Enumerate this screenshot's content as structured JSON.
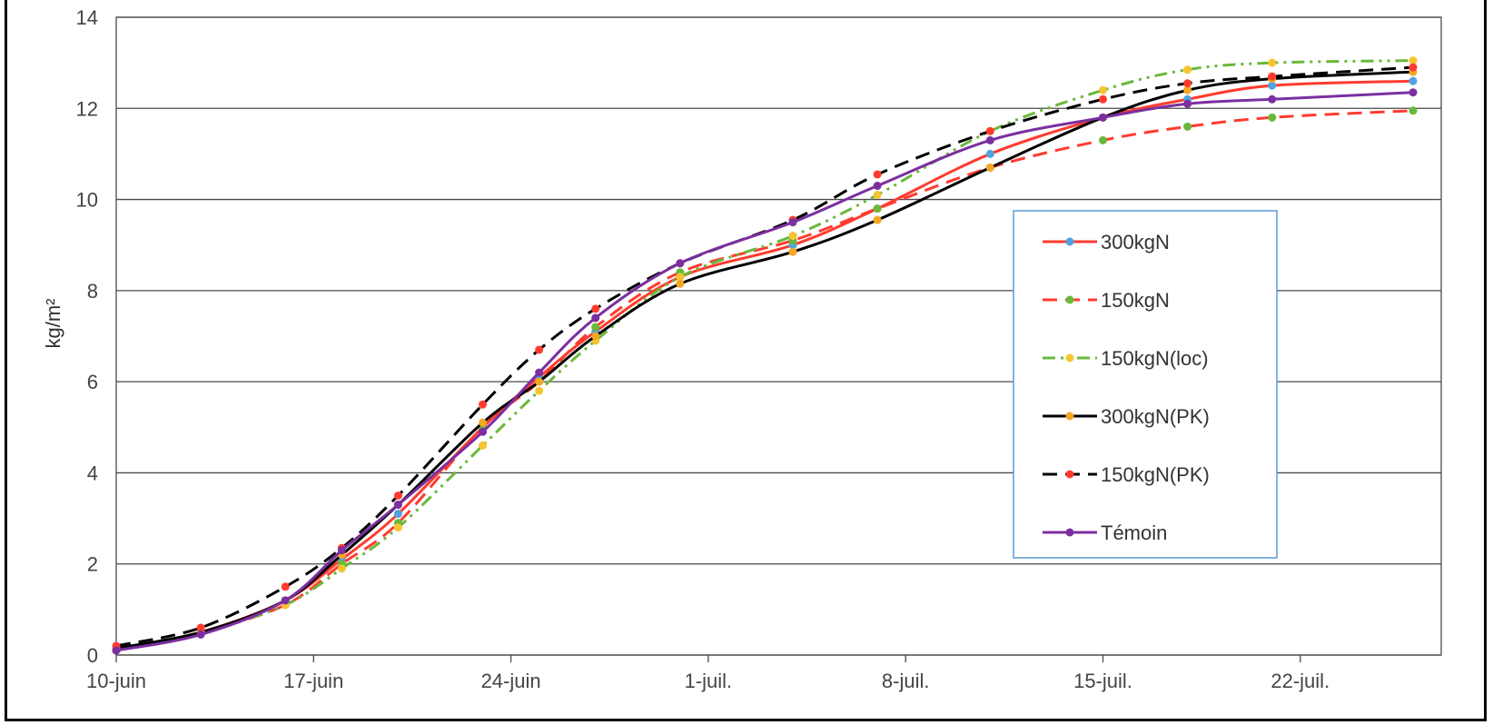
{
  "chart_data": {
    "type": "line",
    "ylabel": "kg/m²",
    "xlabel": "",
    "title": "",
    "ylim": [
      0,
      14
    ],
    "yticks": [
      0,
      2,
      4,
      6,
      8,
      10,
      12,
      14
    ],
    "xlim": [
      "10-juin",
      "27-juil."
    ],
    "xticks": [
      "10-juin",
      "17-juin",
      "24-juin",
      "1-juil.",
      "8-juil.",
      "15-juil.",
      "22-juil."
    ],
    "grid": "horizontal",
    "legend_position": "right",
    "series": [
      {
        "name": "300kgN",
        "line_color": "#ff3b2f",
        "marker_color": "#4fa3e0",
        "dash": "solid",
        "points": [
          [
            "10-juin",
            0.1
          ],
          [
            "13-juin",
            0.5
          ],
          [
            "16-juin",
            1.2
          ],
          [
            "18-juin",
            2.1
          ],
          [
            "20-juin",
            3.1
          ],
          [
            "23-juin",
            5.0
          ],
          [
            "25-juin",
            6.1
          ],
          [
            "27-juin",
            7.1
          ],
          [
            "30-juin",
            8.3
          ],
          [
            "4-juil.",
            9.0
          ],
          [
            "7-juil.",
            9.8
          ],
          [
            "11-juil.",
            11.0
          ],
          [
            "15-juil.",
            11.8
          ],
          [
            "18-juil.",
            12.2
          ],
          [
            "21-juil.",
            12.5
          ],
          [
            "26-juil.",
            12.6
          ]
        ]
      },
      {
        "name": "150kgN",
        "line_color": "#ff3b2f",
        "marker_color": "#6ab83a",
        "dash": "dashed",
        "points": [
          [
            "10-juin",
            0.1
          ],
          [
            "13-juin",
            0.5
          ],
          [
            "16-juin",
            1.1
          ],
          [
            "18-juin",
            2.0
          ],
          [
            "20-juin",
            2.9
          ],
          [
            "23-juin",
            5.0
          ],
          [
            "25-juin",
            6.0
          ],
          [
            "27-juin",
            7.2
          ],
          [
            "30-juin",
            8.4
          ],
          [
            "4-juil.",
            9.1
          ],
          [
            "7-juil.",
            9.8
          ],
          [
            "11-juil.",
            10.7
          ],
          [
            "15-juil.",
            11.3
          ],
          [
            "18-juil.",
            11.6
          ],
          [
            "21-juil.",
            11.8
          ],
          [
            "26-juil.",
            11.95
          ]
        ]
      },
      {
        "name": "150kgN(loc)",
        "line_color": "#6ab83a",
        "marker_color": "#f5c531",
        "dash": "dashdot",
        "points": [
          [
            "10-juin",
            0.1
          ],
          [
            "13-juin",
            0.5
          ],
          [
            "16-juin",
            1.1
          ],
          [
            "18-juin",
            1.9
          ],
          [
            "20-juin",
            2.8
          ],
          [
            "23-juin",
            4.6
          ],
          [
            "25-juin",
            5.8
          ],
          [
            "27-juin",
            6.9
          ],
          [
            "30-juin",
            8.3
          ],
          [
            "4-juil.",
            9.2
          ],
          [
            "7-juil.",
            10.1
          ],
          [
            "11-juil.",
            11.5
          ],
          [
            "15-juil.",
            12.4
          ],
          [
            "18-juil.",
            12.85
          ],
          [
            "21-juil.",
            13.0
          ],
          [
            "26-juil.",
            13.05
          ]
        ]
      },
      {
        "name": "300kgN(PK)",
        "line_color": "#000000",
        "marker_color": "#f5a623",
        "dash": "solid",
        "points": [
          [
            "10-juin",
            0.15
          ],
          [
            "13-juin",
            0.5
          ],
          [
            "16-juin",
            1.2
          ],
          [
            "18-juin",
            2.2
          ],
          [
            "20-juin",
            3.3
          ],
          [
            "23-juin",
            5.1
          ],
          [
            "25-juin",
            6.0
          ],
          [
            "27-juin",
            7.0
          ],
          [
            "30-juin",
            8.15
          ],
          [
            "4-juil.",
            8.85
          ],
          [
            "7-juil.",
            9.55
          ],
          [
            "11-juil.",
            10.7
          ],
          [
            "15-juil.",
            11.8
          ],
          [
            "18-juil.",
            12.4
          ],
          [
            "21-juil.",
            12.65
          ],
          [
            "26-juil.",
            12.8
          ]
        ]
      },
      {
        "name": "150kgN(PK)",
        "line_color": "#000000",
        "marker_color": "#ff3b2f",
        "dash": "dashed",
        "points": [
          [
            "10-juin",
            0.2
          ],
          [
            "13-juin",
            0.6
          ],
          [
            "16-juin",
            1.5
          ],
          [
            "18-juin",
            2.35
          ],
          [
            "20-juin",
            3.5
          ],
          [
            "23-juin",
            5.5
          ],
          [
            "25-juin",
            6.7
          ],
          [
            "27-juin",
            7.6
          ],
          [
            "30-juin",
            8.6
          ],
          [
            "4-juil.",
            9.55
          ],
          [
            "7-juil.",
            10.55
          ],
          [
            "11-juil.",
            11.5
          ],
          [
            "15-juil.",
            12.2
          ],
          [
            "18-juil.",
            12.55
          ],
          [
            "21-juil.",
            12.7
          ],
          [
            "26-juil.",
            12.9
          ]
        ]
      },
      {
        "name": "Témoin",
        "line_color": "#7b2fa0",
        "marker_color": "#7b2fa0",
        "dash": "solid",
        "points": [
          [
            "10-juin",
            0.1
          ],
          [
            "13-juin",
            0.45
          ],
          [
            "16-juin",
            1.2
          ],
          [
            "18-juin",
            2.3
          ],
          [
            "20-juin",
            3.3
          ],
          [
            "23-juin",
            4.9
          ],
          [
            "25-juin",
            6.2
          ],
          [
            "27-juin",
            7.4
          ],
          [
            "30-juin",
            8.6
          ],
          [
            "4-juil.",
            9.5
          ],
          [
            "7-juil.",
            10.3
          ],
          [
            "11-juil.",
            11.3
          ],
          [
            "15-juil.",
            11.8
          ],
          [
            "18-juil.",
            12.1
          ],
          [
            "21-juil.",
            12.2
          ],
          [
            "26-juil.",
            12.35
          ]
        ]
      }
    ]
  }
}
